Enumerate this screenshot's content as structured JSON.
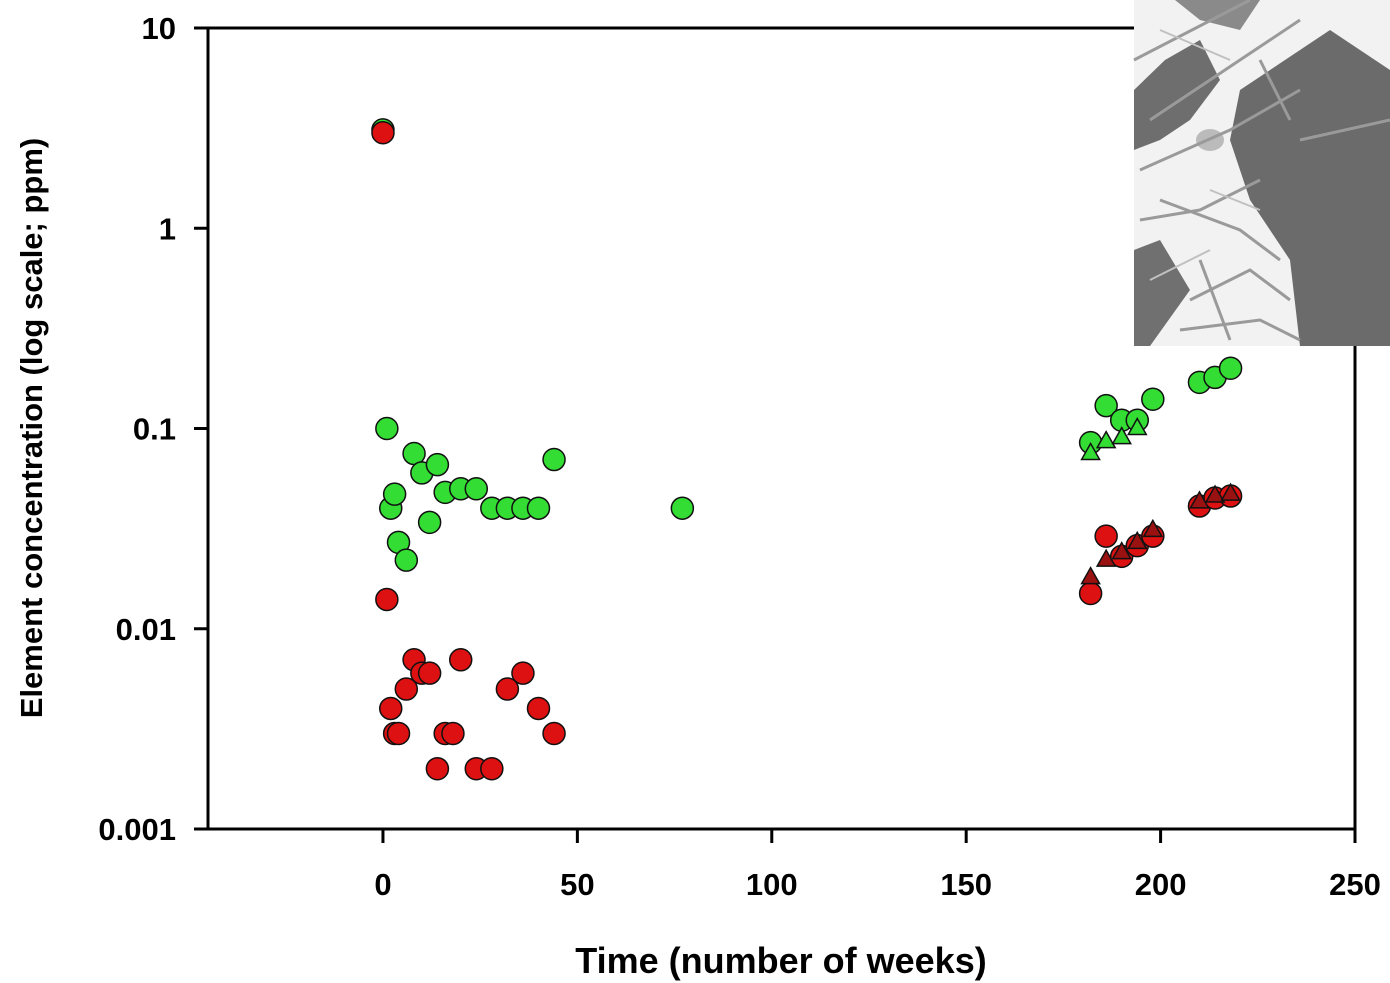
{
  "chart_data": {
    "type": "scatter",
    "xlabel": "Time (number of weeks)",
    "ylabel": "Element concentration (log scale; ppm)",
    "xlim": [
      -45,
      250
    ],
    "ylim": [
      0.001,
      10
    ],
    "y_scale": "log",
    "grid": false,
    "x_ticks": [
      0,
      50,
      100,
      150,
      200,
      250
    ],
    "x_tick_labels": [
      "0",
      "50",
      "100",
      "150",
      "200",
      "250"
    ],
    "y_ticks": [
      0.001,
      0.01,
      0.1,
      1,
      10
    ],
    "y_tick_labels": [
      "0.001",
      "0.01",
      "0.1",
      "1",
      "10"
    ],
    "inset_image": "micrograph",
    "series": [
      {
        "marker": "circle",
        "color": "#33dd33",
        "points": [
          [
            0,
            3.1
          ],
          [
            1,
            0.1
          ],
          [
            2,
            0.04
          ],
          [
            3,
            0.047
          ],
          [
            4,
            0.027
          ],
          [
            6,
            0.022
          ],
          [
            8,
            0.075
          ],
          [
            10,
            0.06
          ],
          [
            12,
            0.034
          ],
          [
            14,
            0.066
          ],
          [
            16,
            0.048
          ],
          [
            20,
            0.05
          ],
          [
            24,
            0.05
          ],
          [
            28,
            0.04
          ],
          [
            32,
            0.04
          ],
          [
            36,
            0.04
          ],
          [
            40,
            0.04
          ],
          [
            44,
            0.07
          ],
          [
            77,
            0.04
          ],
          [
            182,
            0.085
          ],
          [
            186,
            0.13
          ],
          [
            190,
            0.11
          ],
          [
            194,
            0.11
          ],
          [
            198,
            0.14
          ],
          [
            210,
            0.17
          ],
          [
            214,
            0.18
          ],
          [
            218,
            0.2
          ]
        ]
      },
      {
        "marker": "triangle",
        "color": "#33dd33",
        "points": [
          [
            182,
            0.075
          ],
          [
            186,
            0.086
          ],
          [
            190,
            0.09
          ],
          [
            194,
            0.1
          ]
        ]
      },
      {
        "marker": "circle",
        "color": "#dd1111",
        "points": [
          [
            0,
            3.0
          ],
          [
            1,
            0.014
          ],
          [
            2,
            0.004
          ],
          [
            3,
            0.003
          ],
          [
            4,
            0.003
          ],
          [
            6,
            0.005
          ],
          [
            8,
            0.007
          ],
          [
            10,
            0.006
          ],
          [
            12,
            0.006
          ],
          [
            14,
            0.002
          ],
          [
            16,
            0.003
          ],
          [
            18,
            0.003
          ],
          [
            20,
            0.007
          ],
          [
            24,
            0.002
          ],
          [
            28,
            0.002
          ],
          [
            32,
            0.005
          ],
          [
            36,
            0.006
          ],
          [
            40,
            0.004
          ],
          [
            44,
            0.003
          ],
          [
            182,
            0.015
          ],
          [
            186,
            0.029
          ],
          [
            190,
            0.023
          ],
          [
            194,
            0.026
          ],
          [
            198,
            0.029
          ],
          [
            210,
            0.041
          ],
          [
            214,
            0.045
          ],
          [
            218,
            0.046
          ]
        ]
      },
      {
        "marker": "triangle",
        "color": "#991111",
        "points": [
          [
            182,
            0.018
          ],
          [
            186,
            0.022
          ],
          [
            190,
            0.024
          ],
          [
            194,
            0.027
          ],
          [
            198,
            0.031
          ],
          [
            210,
            0.043
          ],
          [
            214,
            0.046
          ],
          [
            218,
            0.047
          ]
        ]
      }
    ]
  }
}
